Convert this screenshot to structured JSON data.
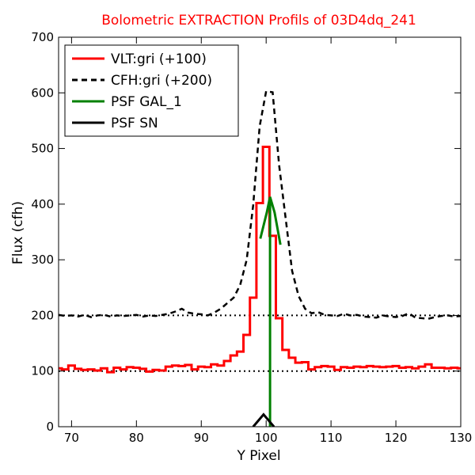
{
  "chart_data": {
    "type": "line",
    "title": "Bolometric EXTRACTION Profils of 03D4dq_241",
    "title_color": "#ff0000",
    "xlabel": "Y Pixel",
    "ylabel": "Flux (cfh)",
    "xlim": [
      68,
      130
    ],
    "ylim": [
      0,
      700
    ],
    "xticks": [
      70,
      80,
      90,
      100,
      110,
      120,
      130
    ],
    "yticks": [
      0,
      100,
      200,
      300,
      400,
      500,
      600,
      700
    ],
    "grid": false,
    "legend_position": "top-left",
    "reference_lines": [
      {
        "y": 100,
        "style": "dotted",
        "color": "#000000"
      },
      {
        "y": 200,
        "style": "dotted",
        "color": "#000000"
      }
    ],
    "series": [
      {
        "name": "VLT:gri (+100)",
        "color": "#ff0000",
        "style": "steps",
        "x": [
          68,
          69,
          70,
          71,
          72,
          73,
          74,
          75,
          76,
          77,
          78,
          79,
          80,
          81,
          82,
          83,
          84,
          85,
          86,
          87,
          88,
          89,
          90,
          91,
          92,
          93,
          94,
          95,
          96,
          97,
          98,
          99,
          100,
          101,
          102,
          103,
          104,
          105,
          106,
          107,
          108,
          109,
          110,
          111,
          112,
          113,
          114,
          115,
          116,
          117,
          118,
          119,
          120,
          121,
          122,
          123,
          124,
          125,
          126,
          127,
          128,
          129,
          130
        ],
        "y": [
          105,
          103,
          110,
          104,
          102,
          103,
          101,
          105,
          98,
          106,
          103,
          107,
          106,
          104,
          99,
          102,
          101,
          108,
          110,
          109,
          111,
          103,
          108,
          107,
          112,
          110,
          118,
          128,
          135,
          165,
          232,
          402,
          503,
          343,
          195,
          138,
          124,
          115,
          116,
          103,
          107,
          109,
          108,
          102,
          107,
          106,
          108,
          107,
          109,
          108,
          107,
          108,
          109,
          106,
          107,
          105,
          108,
          112,
          106,
          106,
          105,
          106,
          105
        ]
      },
      {
        "name": "CFH:gri (+200)",
        "color": "#000000",
        "style": "dashed",
        "x": [
          68,
          69,
          70,
          71,
          72,
          73,
          74,
          75,
          76,
          77,
          78,
          79,
          80,
          81,
          82,
          83,
          84,
          85,
          86,
          87,
          88,
          89,
          90,
          91,
          92,
          93,
          94,
          95,
          96,
          97,
          98,
          99,
          100,
          101,
          102,
          103,
          104,
          105,
          106,
          107,
          108,
          109,
          110,
          111,
          112,
          113,
          114,
          115,
          116,
          117,
          118,
          119,
          120,
          121,
          122,
          123,
          124,
          125,
          126,
          127,
          128,
          129,
          130
        ],
        "y": [
          201,
          199,
          200,
          198,
          201,
          197,
          200,
          201,
          198,
          200,
          199,
          200,
          201,
          198,
          200,
          199,
          201,
          203,
          207,
          212,
          205,
          203,
          202,
          200,
          205,
          212,
          222,
          232,
          255,
          300,
          398,
          540,
          603,
          601,
          470,
          375,
          280,
          235,
          212,
          204,
          206,
          201,
          200,
          199,
          203,
          200,
          201,
          198,
          197,
          196,
          200,
          198,
          197,
          199,
          204,
          196,
          195,
          194,
          197,
          199,
          200,
          198,
          199
        ]
      },
      {
        "name": "PSF GAL_1",
        "color": "#008000",
        "style": "solid",
        "x": [
          99.1,
          100.1,
          100.6,
          100.6,
          100.6,
          101.3,
          102.2
        ],
        "y": [
          338,
          385,
          413,
          0,
          413,
          385,
          327
        ]
      },
      {
        "name": "PSF SN",
        "color": "#000000",
        "style": "solid",
        "x": [
          98,
          99.6,
          101.2
        ],
        "y": [
          0,
          22,
          0
        ]
      }
    ]
  }
}
